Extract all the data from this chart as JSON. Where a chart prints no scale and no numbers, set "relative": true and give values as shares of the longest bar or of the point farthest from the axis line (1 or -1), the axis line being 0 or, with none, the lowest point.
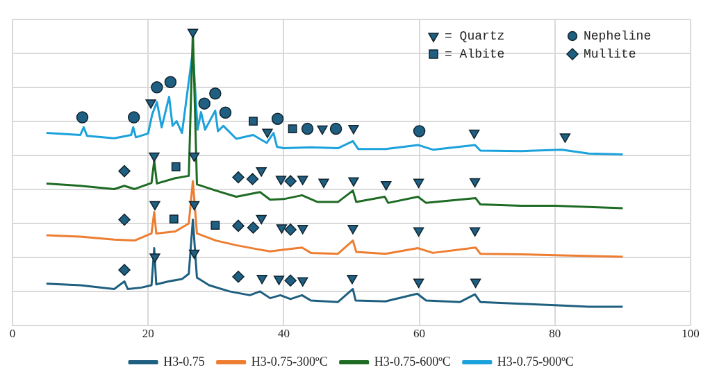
{
  "chart_data": {
    "type": "line",
    "relative": true,
    "xlim": [
      0,
      100
    ],
    "xticks": [
      0,
      20,
      40,
      60,
      80,
      100
    ],
    "grid": true,
    "tick_labels": "x",
    "legend": "bottom",
    "marker": "none",
    "line_style": "solid",
    "series": [
      {
        "name": "H3-0.75",
        "color": "#1f5f7f",
        "x": [
          5,
          10,
          15,
          16.5,
          17,
          19,
          20.5,
          20.9,
          21.2,
          23,
          25,
          26,
          26.6,
          27.2,
          29,
          32,
          35,
          36.5,
          38,
          39.5,
          41,
          42.7,
          44,
          48,
          50.2,
          50.6,
          55,
          59.7,
          61,
          66,
          68.2,
          69,
          75,
          80,
          85,
          90
        ],
        "values": [
          0.141,
          0.136,
          0.123,
          0.149,
          0.123,
          0.128,
          0.136,
          0.262,
          0.139,
          0.149,
          0.157,
          0.175,
          0.359,
          0.162,
          0.136,
          0.115,
          0.102,
          0.115,
          0.092,
          0.102,
          0.089,
          0.102,
          0.084,
          0.079,
          0.123,
          0.084,
          0.081,
          0.107,
          0.084,
          0.079,
          0.105,
          0.079,
          0.073,
          0.068,
          0.063,
          0.063
        ]
      },
      {
        "name": "H3-0.75-300ºC",
        "color": "#ed7d31",
        "x": [
          5,
          10,
          15,
          18,
          20.5,
          20.9,
          21.2,
          24,
          26,
          26.6,
          27.2,
          30,
          33,
          36,
          38,
          40,
          42.7,
          44,
          48,
          50.2,
          50.7,
          55,
          59.8,
          62,
          68.3,
          69,
          75,
          80,
          90
        ],
        "values": [
          0.306,
          0.301,
          0.291,
          0.288,
          0.312,
          0.385,
          0.312,
          0.319,
          0.346,
          0.49,
          0.312,
          0.288,
          0.272,
          0.259,
          0.251,
          0.257,
          0.264,
          0.246,
          0.243,
          0.288,
          0.249,
          0.243,
          0.262,
          0.246,
          0.264,
          0.243,
          0.241,
          0.238,
          0.233
        ]
      },
      {
        "name": "H3-0.75-600ºC",
        "color": "#1e6b24",
        "x": [
          5,
          10,
          15,
          16.5,
          18,
          20.5,
          20.9,
          21.3,
          24,
          26,
          26.6,
          27.2,
          30,
          33,
          36.5,
          38,
          40,
          42.7,
          45,
          48,
          50.2,
          50.7,
          54.9,
          55.4,
          59.8,
          61,
          68.3,
          69,
          75,
          80,
          90
        ],
        "values": [
          0.482,
          0.474,
          0.463,
          0.474,
          0.463,
          0.484,
          0.56,
          0.482,
          0.5,
          0.508,
          1,
          0.479,
          0.458,
          0.437,
          0.453,
          0.427,
          0.429,
          0.442,
          0.419,
          0.419,
          0.458,
          0.419,
          0.437,
          0.416,
          0.437,
          0.416,
          0.432,
          0.411,
          0.406,
          0.406,
          0.398
        ]
      },
      {
        "name": "H3-0.75-900ºC",
        "color": "#1ba1db",
        "x": [
          5,
          10,
          10.5,
          11,
          15,
          17.5,
          17.8,
          18.2,
          20,
          20.6,
          21.3,
          22,
          23.1,
          23.6,
          24.2,
          25,
          26.6,
          27.3,
          27.8,
          28.4,
          29.9,
          30.3,
          31.1,
          33,
          35.5,
          37.5,
          38.5,
          39,
          40,
          44,
          48,
          50.2,
          51,
          55,
          59.8,
          62,
          68.2,
          69,
          75,
          81,
          85,
          90
        ],
        "values": [
          0.654,
          0.647,
          0.673,
          0.644,
          0.636,
          0.647,
          0.673,
          0.639,
          0.652,
          0.717,
          0.759,
          0.673,
          0.777,
          0.678,
          0.694,
          0.654,
          0.935,
          0.665,
          0.725,
          0.665,
          0.73,
          0.66,
          0.678,
          0.634,
          0.647,
          0.62,
          0.654,
          0.607,
          0.602,
          0.605,
          0.602,
          0.626,
          0.599,
          0.599,
          0.613,
          0.597,
          0.613,
          0.594,
          0.592,
          0.597,
          0.584,
          0.581
        ]
      },
      {
        "name": "= Quartz",
        "type": "scatter",
        "marker": "triangle",
        "color": "#1f5f82",
        "x": [
          20.4,
          26.6,
          37.6,
          45.7,
          50.3,
          68.1,
          81.5,
          20.9,
          26.8,
          36.7,
          39.6,
          42.8,
          45.9,
          50.3,
          55.1,
          59.9,
          68.2,
          21.0,
          26.8,
          36.7,
          39.7,
          42.8,
          50.2,
          59.9,
          68.2,
          21.0,
          26.8,
          36.8,
          39.3,
          42.8,
          50.1,
          59.9,
          68.3
        ],
        "values": [
          0.757,
          0.997,
          0.657,
          0.668,
          0.67,
          0.654,
          0.641,
          0.576,
          0.576,
          0.526,
          0.497,
          0.497,
          0.487,
          0.492,
          0.479,
          0.487,
          0.489,
          0.411,
          0.411,
          0.364,
          0.332,
          0.33,
          0.33,
          0.322,
          0.322,
          0.233,
          0.246,
          0.16,
          0.157,
          0.152,
          0.16,
          0.147,
          0.147
        ]
      },
      {
        "name": "= Albite",
        "type": "scatter",
        "marker": "square",
        "color": "#1f5f82",
        "x": [
          35.5,
          41.3,
          24.1,
          23.8,
          29.9
        ],
        "values": [
          0.694,
          0.668,
          0.539,
          0.361,
          0.34
        ]
      },
      {
        "name": "Nepheline",
        "type": "scatter",
        "marker": "circle",
        "color": "#1f5f82",
        "x": [
          10.3,
          17.9,
          21.3,
          23.3,
          28.3,
          29.9,
          31.4,
          39.1,
          43.5,
          47.7,
          60.0
        ],
        "values": [
          0.707,
          0.707,
          0.809,
          0.827,
          0.754,
          0.788,
          0.723,
          0.702,
          0.668,
          0.668,
          0.66
        ]
      },
      {
        "name": "Mullite",
        "type": "scatter",
        "marker": "diamond",
        "color": "#1f5f82",
        "x": [
          16.5,
          33.3,
          35.4,
          41.0,
          16.5,
          33.3,
          35.5,
          41.0,
          16.5,
          33.3,
          41.0
        ],
        "values": [
          0.524,
          0.503,
          0.497,
          0.49,
          0.359,
          0.338,
          0.332,
          0.325,
          0.188,
          0.165,
          0.152
        ]
      }
    ]
  }
}
